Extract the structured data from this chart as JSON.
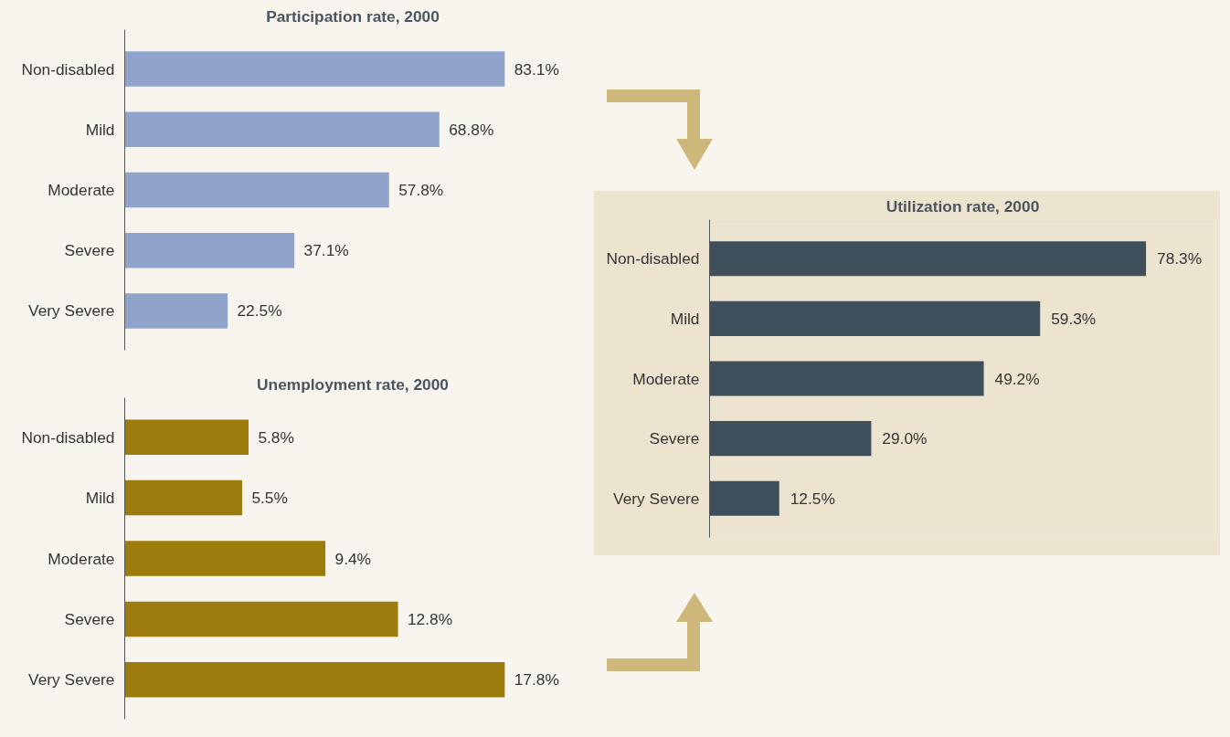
{
  "chart_data": [
    {
      "type": "bar",
      "orientation": "horizontal",
      "title": "Participation rate, 2000",
      "categories": [
        "Non-disabled",
        "Mild",
        "Moderate",
        "Severe",
        "Very Severe"
      ],
      "values": [
        83.1,
        68.8,
        57.8,
        37.1,
        22.5
      ],
      "value_labels": [
        "83.1%",
        "68.8%",
        "57.8%",
        "37.1%",
        "22.5%"
      ],
      "color": "#8fa3cb"
    },
    {
      "type": "bar",
      "orientation": "horizontal",
      "title": "Unemployment rate, 2000",
      "categories": [
        "Non-disabled",
        "Mild",
        "Moderate",
        "Severe",
        "Very Severe"
      ],
      "values": [
        5.8,
        5.5,
        9.4,
        12.8,
        17.8
      ],
      "value_labels": [
        "5.8%",
        "5.5%",
        "9.4%",
        "12.8%",
        "17.8%"
      ],
      "color": "#9c7c0c"
    },
    {
      "type": "bar",
      "orientation": "horizontal",
      "title": "Utilization rate, 2000",
      "categories": [
        "Non-disabled",
        "Mild",
        "Moderate",
        "Severe",
        "Very Severe"
      ],
      "values": [
        78.3,
        59.3,
        49.2,
        29.0,
        12.5
      ],
      "value_labels": [
        "78.3%",
        "59.3%",
        "49.2%",
        "29.0%",
        "12.5%"
      ],
      "color": "#3f4f5b"
    }
  ]
}
